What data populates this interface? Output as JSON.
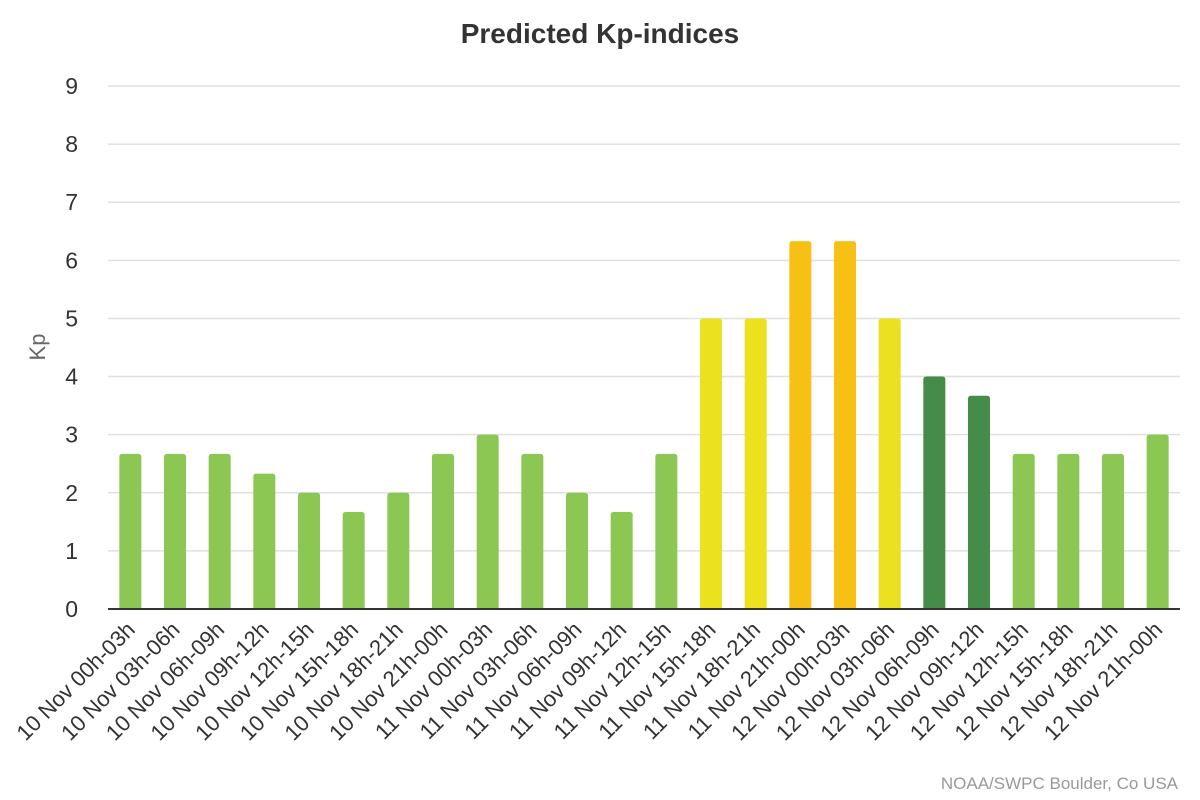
{
  "chart_data": {
    "type": "bar",
    "title": "Predicted Kp-indices",
    "xlabel": "",
    "ylabel": "Kp",
    "ylim": [
      0,
      9
    ],
    "yticks": [
      0,
      1,
      2,
      3,
      4,
      5,
      6,
      7,
      8,
      9
    ],
    "grid": true,
    "legend": "none",
    "credit": "NOAA/SWPC Boulder, Co USA",
    "categories": [
      "10 Nov 00h-03h",
      "10 Nov 03h-06h",
      "10 Nov 06h-09h",
      "10 Nov 09h-12h",
      "10 Nov 12h-15h",
      "10 Nov 15h-18h",
      "10 Nov 18h-21h",
      "10 Nov 21h-00h",
      "11 Nov 00h-03h",
      "11 Nov 03h-06h",
      "11 Nov 06h-09h",
      "11 Nov 09h-12h",
      "11 Nov 12h-15h",
      "11 Nov 15h-18h",
      "11 Nov 18h-21h",
      "11 Nov 21h-00h",
      "12 Nov 00h-03h",
      "12 Nov 03h-06h",
      "12 Nov 06h-09h",
      "12 Nov 09h-12h",
      "12 Nov 12h-15h",
      "12 Nov 15h-18h",
      "12 Nov 18h-21h",
      "12 Nov 21h-00h"
    ],
    "values": [
      2.67,
      2.67,
      2.67,
      2.33,
      2.0,
      1.67,
      2.0,
      2.67,
      3.0,
      2.67,
      2.0,
      1.67,
      2.67,
      5.0,
      5.0,
      6.33,
      6.33,
      5.0,
      4.0,
      3.67,
      2.67,
      2.67,
      2.67,
      3.0
    ],
    "colors": {
      "green": "#8bc752",
      "dark_green": "#448c47",
      "yellow": "#ebe11e",
      "orange": "#f6c015"
    },
    "bar_colors": [
      "green",
      "green",
      "green",
      "green",
      "green",
      "green",
      "green",
      "green",
      "green",
      "green",
      "green",
      "green",
      "green",
      "yellow",
      "yellow",
      "orange",
      "orange",
      "yellow",
      "dark_green",
      "dark_green",
      "green",
      "green",
      "green",
      "green"
    ]
  }
}
